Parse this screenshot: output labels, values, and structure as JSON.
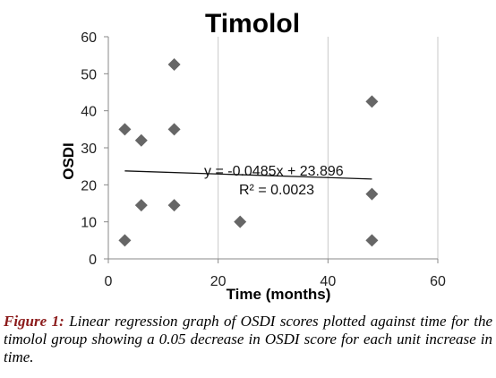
{
  "chart_data": {
    "type": "scatter",
    "title": "Timolol",
    "xlabel": "Time (months)",
    "ylabel": "OSDI",
    "xlim": [
      0,
      60
    ],
    "ylim": [
      0,
      60
    ],
    "xticks": [
      "0",
      "20",
      "40",
      "60"
    ],
    "yticks": [
      "0",
      "10",
      "20",
      "30",
      "40",
      "50",
      "60"
    ],
    "grid": "vertical",
    "marker_color": "#666666",
    "points": [
      {
        "x": 3,
        "y": 35
      },
      {
        "x": 6,
        "y": 32
      },
      {
        "x": 3,
        "y": 5
      },
      {
        "x": 6,
        "y": 14.5
      },
      {
        "x": 12,
        "y": 52.5
      },
      {
        "x": 12,
        "y": 35
      },
      {
        "x": 12,
        "y": 14.5
      },
      {
        "x": 24,
        "y": 10
      },
      {
        "x": 48,
        "y": 42.5
      },
      {
        "x": 48,
        "y": 17.5
      },
      {
        "x": 48,
        "y": 5
      }
    ],
    "trendline": {
      "slope": -0.0485,
      "intercept": 23.896,
      "x_range": [
        3,
        48
      ],
      "equation": "y = -0.0485x + 23.896",
      "r_squared": "R² = 0.0023"
    }
  },
  "caption": {
    "label": "Figure 1:",
    "text": " Linear regression graph of OSDI scores plotted against time for the timolol group showing a 0.05 decrease in OSDI score for each unit increase in time."
  }
}
